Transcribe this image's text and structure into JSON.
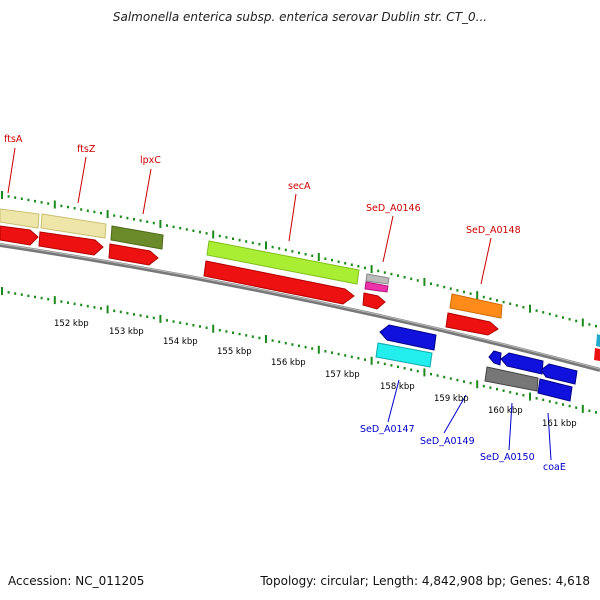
{
  "title": "Salmonella enterica subsp. enterica serovar Dublin str. CT_0...",
  "footer": {
    "accession": "Accession: NC_011205",
    "topology": "Topology: circular; Length: 4,842,908 bp; Genes: 4,618"
  },
  "kbp_labels": [
    "152 kbp",
    "153 kbp",
    "154 kbp",
    "155 kbp",
    "156 kbp",
    "157 kbp",
    "158 kbp",
    "159 kbp",
    "160 kbp",
    "161 kbp"
  ],
  "gene_labels": {
    "ftsA": "ftsA",
    "ftsZ": "ftsZ",
    "lpxC": "lpxC",
    "secA": "secA",
    "SeD_A0146": "SeD_A0146",
    "SeD_A0148": "SeD_A0148",
    "SeD_A0147": "SeD_A0147",
    "SeD_A0149": "SeD_A0149",
    "SeD_A0150": "SeD_A0150",
    "coaE": "coaE"
  },
  "colors": {
    "forward_label": "#cc0000",
    "reverse_label": "#0000cc",
    "cds_red": "#ee1111",
    "tick_green": "#1a8a1a",
    "backbone": "#888888"
  }
}
